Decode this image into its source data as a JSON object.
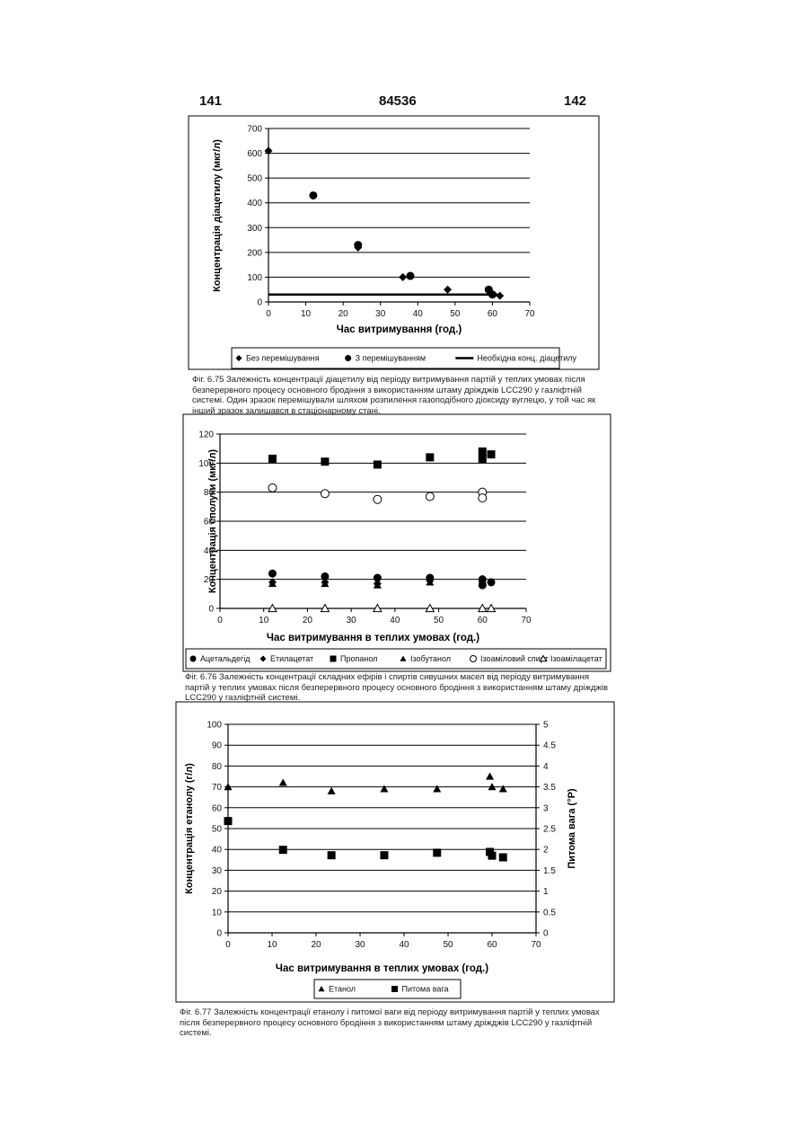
{
  "page": {
    "left_number": "141",
    "patent_number": "84536",
    "right_number": "142"
  },
  "captions": [
    "Фіг. 6.75 Залежність концентрації діацетилу від періоду витримування партій у теплих умовах після безперервного процесу основного бродіння з використанням штаму дріжджів LCC290 у газліфтній системі. Один зразок перемішували шляхом розпилення газоподібного діоксиду вуглецю, у той час як інший зразок залишався в стаціонарному стані.",
    "Фіг. 6.76 Залежність концентрації складних ефірів і спиртів сивушних масел від періоду витримування партій у теплих умовах після безперервного процесу основного бродіння з використанням штаму дріжджів LCC290 у газліфтній системі.",
    "Фіг. 6.77 Залежність концентрації етанолу і питомої ваги від періоду витримування партій у теплих умовах після безперервного процесу основного бродіння з використанням штаму дріжджів LCC290 у газліфтній системі."
  ],
  "chart_data": [
    {
      "type": "scatter",
      "xlabel": "Час витримування (год.)",
      "ylabel": "Концентрація діацетилу (мкг/л)",
      "xlim": [
        0,
        70
      ],
      "ylim": [
        0,
        700
      ],
      "xticks": [
        0,
        10,
        20,
        30,
        40,
        50,
        60,
        70
      ],
      "yticks": [
        0,
        100,
        200,
        300,
        400,
        500,
        600,
        700
      ],
      "grid": "horizontal",
      "legend_position": "bottom",
      "series": [
        {
          "name": "Без перемішування",
          "marker": "diamond",
          "color": "#000000",
          "x": [
            0,
            24,
            36,
            48,
            60,
            62
          ],
          "y": [
            610,
            220,
            100,
            50,
            30,
            25
          ]
        },
        {
          "name": "З перемішуванням",
          "marker": "circle",
          "color": "#000000",
          "x": [
            12,
            24,
            38,
            59,
            60
          ],
          "y": [
            430,
            230,
            105,
            50,
            30
          ]
        },
        {
          "name": "Необхідна конц. діацетилу",
          "marker": "line",
          "color": "#000000",
          "x": [
            0,
            62
          ],
          "y": [
            30,
            30
          ]
        }
      ]
    },
    {
      "type": "scatter",
      "xlabel": "Час витримування в теплих умовах (год.)",
      "ylabel": "Концентрація сполуки (мкг/л)",
      "xlim": [
        0,
        70
      ],
      "ylim": [
        0,
        120
      ],
      "xticks": [
        0,
        10,
        20,
        30,
        40,
        50,
        60,
        70
      ],
      "yticks": [
        0,
        20,
        40,
        60,
        80,
        100,
        120
      ],
      "grid": "horizontal",
      "legend_position": "bottom",
      "series": [
        {
          "name": "Ацетальдегід",
          "marker": "circle",
          "color": "#000000",
          "x": [
            12,
            24,
            36,
            48,
            60,
            62,
            60
          ],
          "y": [
            24,
            22,
            21,
            21,
            20,
            18,
            16
          ]
        },
        {
          "name": "Етилацетат",
          "marker": "diamond",
          "color": "#000000",
          "x": [
            12,
            24,
            36,
            48,
            60
          ],
          "y": [
            18,
            18,
            17,
            19,
            18
          ]
        },
        {
          "name": "Пропанол",
          "marker": "square",
          "color": "#000000",
          "x": [
            12,
            24,
            36,
            48,
            60,
            60,
            62
          ],
          "y": [
            103,
            101,
            99,
            104,
            108,
            103,
            106
          ]
        },
        {
          "name": "Ізобутанол",
          "marker": "triangle",
          "color": "#000000",
          "x": [
            12,
            24,
            36,
            48,
            60
          ],
          "y": [
            17,
            17,
            16,
            18,
            17
          ]
        },
        {
          "name": "Ізоаміловий спирт",
          "marker": "circle-open",
          "color": "#000000",
          "x": [
            12,
            24,
            36,
            48,
            60,
            60
          ],
          "y": [
            83,
            79,
            75,
            77,
            80,
            76
          ]
        },
        {
          "name": "Ізоамілацетат",
          "marker": "triangle-open",
          "color": "#000000",
          "x": [
            12,
            24,
            36,
            48,
            60,
            62
          ],
          "y": [
            0,
            0,
            0,
            0,
            0,
            0
          ]
        }
      ]
    },
    {
      "type": "scatter",
      "xlabel": "Час витримування в теплих умовах (год.)",
      "ylabel": "Концентрація етанолу (г/л)",
      "y2label": "Питома вага (°P)",
      "xlim": [
        0,
        70
      ],
      "ylim": [
        0,
        100
      ],
      "y2lim": [
        0,
        5
      ],
      "xticks": [
        0,
        10,
        20,
        30,
        40,
        50,
        60,
        70
      ],
      "yticks": [
        0,
        10,
        20,
        30,
        40,
        50,
        60,
        70,
        80,
        90,
        100
      ],
      "y2ticks": [
        "0",
        "0.5",
        "1",
        "1.5",
        "2",
        "2.5",
        "3",
        "3.5",
        "4",
        "4.5",
        "5"
      ],
      "grid": "horizontal",
      "legend_position": "bottom",
      "series": [
        {
          "name": "Етанол",
          "marker": "triangle",
          "axis": "left",
          "color": "#000000",
          "x": [
            0,
            12.5,
            23.5,
            35.5,
            47.5,
            59.5,
            60,
            62.5
          ],
          "y": [
            70,
            72,
            68,
            69,
            69,
            75,
            70,
            69
          ]
        },
        {
          "name": "Питома вага",
          "marker": "square",
          "axis": "right",
          "color": "#000000",
          "x": [
            0,
            12.5,
            23.5,
            35.5,
            47.5,
            59.5,
            60,
            62.5
          ],
          "y": [
            2.68,
            1.99,
            1.86,
            1.86,
            1.92,
            1.94,
            1.85,
            1.81
          ]
        }
      ]
    }
  ]
}
